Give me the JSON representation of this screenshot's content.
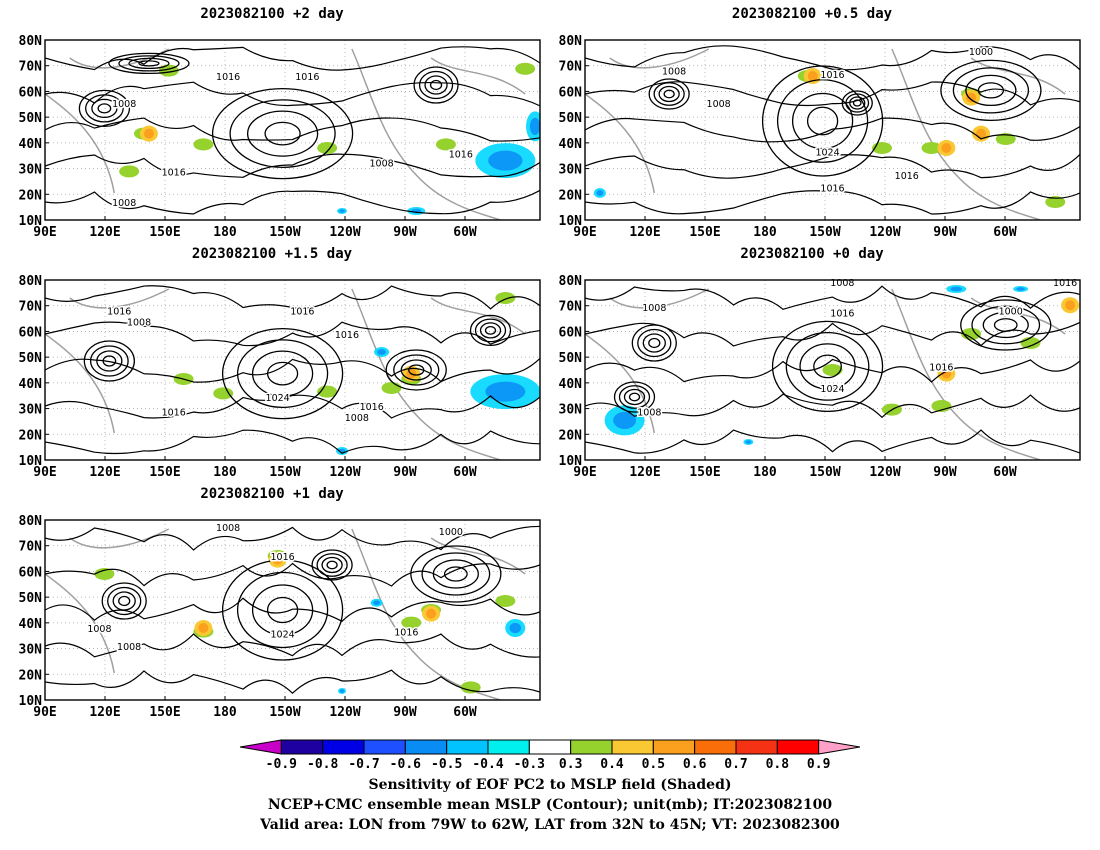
{
  "panels": [
    {
      "id": "p2",
      "title": "2023082100  +2 day",
      "labels": [
        "1016",
        "1016",
        "1008",
        "1016",
        "1008",
        "1008",
        "1016"
      ]
    },
    {
      "id": "p05",
      "title": "2023082100  +0.5 day",
      "labels": [
        "1000",
        "1008",
        "1016",
        "1008",
        "1024",
        "1016",
        "1016"
      ]
    },
    {
      "id": "p15",
      "title": "2023082100  +1.5 day",
      "labels": [
        "1016",
        "1008",
        "1016",
        "1016",
        "1024",
        "1016",
        "1008",
        "1016"
      ]
    },
    {
      "id": "p0",
      "title": "2023082100  +0 day",
      "labels": [
        "1008",
        "1008",
        "1016",
        "1000",
        "1016",
        "1024",
        "1008",
        "1016"
      ]
    },
    {
      "id": "p1",
      "title": "2023082100  +1 day",
      "labels": [
        "1008",
        "1000",
        "1016",
        "1008",
        "1008",
        "1024",
        "1016"
      ]
    }
  ],
  "axes": {
    "lat_ticks": [
      "80N",
      "70N",
      "60N",
      "50N",
      "40N",
      "30N",
      "20N",
      "10N"
    ],
    "lon_ticks": [
      "90E",
      "120E",
      "150E",
      "180",
      "150W",
      "120W",
      "90W",
      "60W"
    ]
  },
  "colorbar": {
    "ticks": [
      "-0.9",
      "-0.8",
      "-0.7",
      "-0.6",
      "-0.5",
      "-0.4",
      "-0.3",
      "0.3",
      "0.4",
      "0.5",
      "0.6",
      "0.7",
      "0.8",
      "0.9"
    ],
    "colors": [
      "#c800c8",
      "#1e00a0",
      "#0000e6",
      "#1e50ff",
      "#0a8cf5",
      "#00c3ff",
      "#00f0f0",
      "#ffffff",
      "#96d22d",
      "#fac832",
      "#faa01e",
      "#fa6e0a",
      "#f53214",
      "#ff0000",
      "#ffa0c8"
    ]
  },
  "captions": [
    "Sensitivity of EOF PC2 to MSLP field (Shaded)",
    "NCEP+CMC ensemble mean MSLP (Contour); unit(mb); IT:2023082100",
    "Valid area: LON from 79W to 62W, LAT from 32N to 45N; VT: 2023082300"
  ]
}
